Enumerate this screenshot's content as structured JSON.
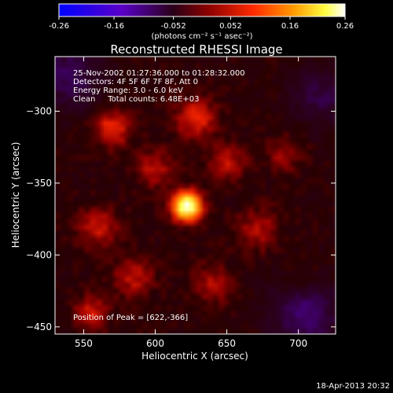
{
  "chart_data": {
    "type": "heatmap",
    "title": "Reconstructed RHESSI Image",
    "colorbar": {
      "ticks": [
        "-0.26",
        "-0.16",
        "-0.052",
        "0.052",
        "0.16",
        "0.26"
      ],
      "tick_values": [
        -0.26,
        -0.16,
        -0.052,
        0.052,
        0.16,
        0.26
      ],
      "range": [
        -0.26,
        0.26
      ],
      "unit_label": "(photons cm⁻² s⁻¹ asec⁻²)",
      "colormap": "RHESSI blue-purple-red-yellow-white"
    },
    "xlabel": "Heliocentric X (arcsec)",
    "ylabel": "Heliocentric Y (arcsec)",
    "xlim": [
      530,
      726
    ],
    "ylim": [
      -455,
      -262
    ],
    "xticks": [
      550,
      600,
      650,
      700
    ],
    "yticks": [
      -300,
      -350,
      -400,
      -450
    ],
    "xtick_labels": [
      "550",
      "600",
      "650",
      "700"
    ],
    "ytick_labels": [
      "−300",
      "−350",
      "−400",
      "−450"
    ],
    "annotations": [
      "25-Nov-2002 01:27:36.000 to 01:28:32.000",
      "Detectors: 4F 5F 6F 7F 8F, Att 0",
      "Energy Range: 3.0 - 6.0 keV",
      "Clean     Total counts: 6.48E+03"
    ],
    "peak": {
      "x": 622,
      "y": -366,
      "label": "Position of Peak = [622,-366]"
    },
    "sources": [
      {
        "x": 622,
        "y": -366,
        "peak": 0.26,
        "sigma": 7
      },
      {
        "x": 570,
        "y": -312,
        "peak": 0.085,
        "sigma": 9
      },
      {
        "x": 628,
        "y": -305,
        "peak": 0.08,
        "sigma": 10
      },
      {
        "x": 600,
        "y": -340,
        "peak": 0.06,
        "sigma": 9
      },
      {
        "x": 560,
        "y": -380,
        "peak": 0.065,
        "sigma": 10
      },
      {
        "x": 585,
        "y": -415,
        "peak": 0.06,
        "sigma": 10
      },
      {
        "x": 650,
        "y": -335,
        "peak": 0.06,
        "sigma": 9
      },
      {
        "x": 672,
        "y": -382,
        "peak": 0.055,
        "sigma": 10
      },
      {
        "x": 640,
        "y": -420,
        "peak": 0.05,
        "sigma": 10
      },
      {
        "x": 690,
        "y": -330,
        "peak": 0.045,
        "sigma": 9
      },
      {
        "x": 555,
        "y": -440,
        "peak": 0.07,
        "sigma": 8
      },
      {
        "x": 705,
        "y": -420,
        "peak": 0.03,
        "sigma": 9
      }
    ],
    "negative_regions": [
      {
        "x": 705,
        "y": -440,
        "peak": -0.09,
        "sigma": 16
      },
      {
        "x": 540,
        "y": -275,
        "peak": -0.07,
        "sigma": 16
      },
      {
        "x": 715,
        "y": -290,
        "peak": -0.06,
        "sigma": 14
      }
    ]
  },
  "footer": {
    "timestamp": "18-Apr-2013 20:32"
  }
}
